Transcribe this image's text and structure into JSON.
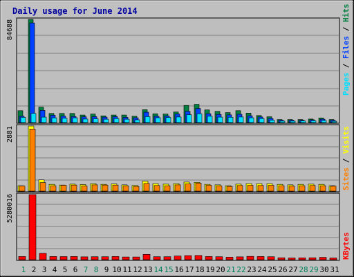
{
  "chart_data": [
    {
      "type": "bar",
      "title": "Daily usage for June 2014",
      "categories": [
        "1",
        "2",
        "3",
        "4",
        "5",
        "6",
        "7",
        "8",
        "9",
        "10",
        "11",
        "12",
        "13",
        "14",
        "15",
        "16",
        "17",
        "18",
        "19",
        "20",
        "21",
        "22",
        "23",
        "24",
        "25",
        "26",
        "27",
        "28",
        "29",
        "30",
        "31"
      ],
      "weekend_days": [
        "1",
        "7",
        "8",
        "14",
        "15",
        "21",
        "22",
        "28",
        "29"
      ],
      "ymax_label": "84688",
      "ymax": 84688,
      "series": [
        {
          "name": "Hits",
          "color": "#008040",
          "values": [
            9800,
            84688,
            12700,
            7500,
            7500,
            7500,
            6200,
            7000,
            5500,
            6200,
            6200,
            5200,
            10600,
            7200,
            7000,
            8700,
            14100,
            15000,
            10400,
            9200,
            8200,
            9800,
            7800,
            5800,
            4800,
            2500,
            2500,
            2500,
            2900,
            3800,
            2500
          ]
        },
        {
          "name": "Files",
          "color": "#0040FF",
          "values": [
            5200,
            81800,
            10000,
            6000,
            5300,
            5000,
            4800,
            4900,
            4500,
            4900,
            4300,
            3900,
            8500,
            5200,
            5400,
            7000,
            9200,
            11600,
            7300,
            6700,
            6300,
            6800,
            5600,
            4600,
            3400,
            2000,
            2000,
            1900,
            2300,
            2800,
            1900
          ]
        },
        {
          "name": "Pages",
          "color": "#00E0FF",
          "values": [
            4300,
            7500,
            4500,
            3900,
            3600,
            3900,
            2900,
            3100,
            2800,
            3300,
            2800,
            2300,
            4900,
            4000,
            4200,
            4600,
            6500,
            7200,
            5200,
            4500,
            4400,
            4600,
            3900,
            3300,
            2000,
            1200,
            1200,
            1300,
            1500,
            1700,
            1100
          ]
        }
      ],
      "legend_labels": [
        "Pages",
        "Files",
        "Hits"
      ]
    },
    {
      "type": "bar",
      "ymax_label": "2881",
      "ymax": 2881,
      "series": [
        {
          "name": "Visits",
          "color": "#FFFF00",
          "values": [
            240,
            2881,
            500,
            300,
            270,
            310,
            290,
            330,
            300,
            320,
            280,
            250,
            440,
            330,
            310,
            330,
            400,
            390,
            300,
            280,
            240,
            310,
            330,
            330,
            330,
            300,
            280,
            300,
            310,
            300,
            240
          ]
        },
        {
          "name": "Sites",
          "color": "#FF8000",
          "values": [
            230,
            2750,
            380,
            240,
            260,
            270,
            230,
            280,
            270,
            270,
            230,
            210,
            340,
            250,
            240,
            280,
            320,
            360,
            260,
            230,
            210,
            250,
            260,
            250,
            260,
            240,
            220,
            240,
            250,
            240,
            220
          ]
        }
      ],
      "legend_labels": [
        "Sites",
        "Visits"
      ]
    },
    {
      "type": "bar",
      "ymax_label": "5280016",
      "ymax": 5280016,
      "series": [
        {
          "name": "KBytes",
          "color": "#FF0000",
          "values": [
            260000,
            5280016,
            520000,
            260000,
            250000,
            260000,
            230000,
            240000,
            240000,
            260000,
            220000,
            220000,
            430000,
            240000,
            240000,
            300000,
            330000,
            340000,
            260000,
            240000,
            200000,
            230000,
            270000,
            260000,
            240000,
            160000,
            140000,
            150000,
            160000,
            190000,
            140000
          ]
        }
      ],
      "legend_labels": [
        "KBytes"
      ]
    }
  ]
}
